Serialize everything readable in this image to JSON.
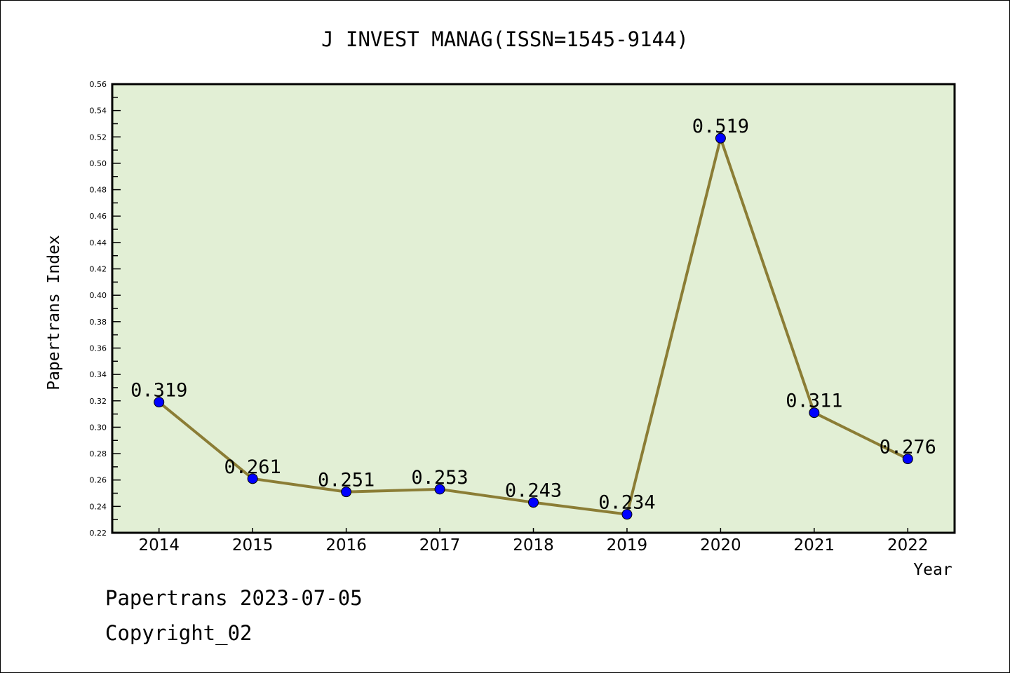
{
  "chart_data": {
    "type": "line",
    "title": "J INVEST MANAG(ISSN=1545-9144)",
    "xlabel": "Year",
    "ylabel": "Papertrans Index",
    "categories": [
      "2014",
      "2015",
      "2016",
      "2017",
      "2018",
      "2019",
      "2020",
      "2021",
      "2022"
    ],
    "values": [
      0.319,
      0.261,
      0.251,
      0.253,
      0.243,
      0.234,
      0.519,
      0.311,
      0.276
    ],
    "data_labels": [
      "0.319",
      "0.261",
      "0.251",
      "0.253",
      "0.243",
      "0.234",
      "0.519",
      "0.311",
      "0.276"
    ],
    "ylim": [
      0.22,
      0.56
    ],
    "yticks": [
      "0.22",
      "0.24",
      "0.26",
      "0.28",
      "0.30",
      "0.32",
      "0.34",
      "0.36",
      "0.38",
      "0.40",
      "0.42",
      "0.44",
      "0.46",
      "0.48",
      "0.50",
      "0.52",
      "0.54",
      "0.56"
    ],
    "grid": false,
    "colors": {
      "plot_bg": "#e2efd5",
      "line": "#8b7d35",
      "marker": "#0000ff"
    }
  },
  "footer": {
    "line1": "Papertrans 2023-07-05",
    "line2": "Copyright_02"
  }
}
